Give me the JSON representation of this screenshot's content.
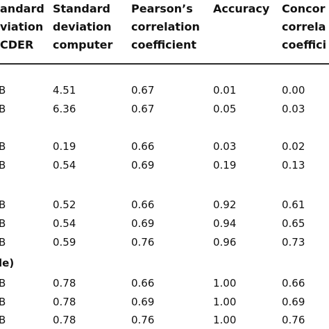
{
  "header": {
    "col1": [
      "andard",
      "viation",
      "CDER"
    ],
    "col2": [
      "Standard",
      "deviation",
      "computer"
    ],
    "col3": [
      "Pearson’s",
      "correlation",
      "coefficient"
    ],
    "col4": [
      "Accuracy"
    ],
    "col5": [
      "Concor",
      "correla",
      "coeffici"
    ]
  },
  "rows": [
    {
      "label": "B",
      "sd_computer": "4.51",
      "pearson": "0.67",
      "accuracy": "0.01",
      "concordance": "0.00"
    },
    {
      "label": "B",
      "sd_computer": "6.36",
      "pearson": "0.67",
      "accuracy": "0.05",
      "concordance": "0.03"
    },
    {
      "label": "B",
      "sd_computer": "0.19",
      "pearson": "0.66",
      "accuracy": "0.03",
      "concordance": "0.02"
    },
    {
      "label": "B",
      "sd_computer": "0.54",
      "pearson": "0.69",
      "accuracy": "0.19",
      "concordance": "0.13"
    },
    {
      "label": "B",
      "sd_computer": "0.52",
      "pearson": "0.66",
      "accuracy": "0.92",
      "concordance": "0.61"
    },
    {
      "label": "B",
      "sd_computer": "0.54",
      "pearson": "0.69",
      "accuracy": "0.94",
      "concordance": "0.65"
    },
    {
      "label": "B",
      "sd_computer": "0.59",
      "pearson": "0.76",
      "accuracy": "0.96",
      "concordance": "0.73"
    },
    {
      "label": "B",
      "sd_computer": "0.78",
      "pearson": "0.66",
      "accuracy": "1.00",
      "concordance": "0.66"
    },
    {
      "label": "B",
      "sd_computer": "0.78",
      "pearson": "0.69",
      "accuracy": "1.00",
      "concordance": "0.69"
    },
    {
      "label": "B",
      "sd_computer": "0.78",
      "pearson": "0.76",
      "accuracy": "1.00",
      "concordance": "0.76"
    }
  ],
  "section_label": "le)"
}
